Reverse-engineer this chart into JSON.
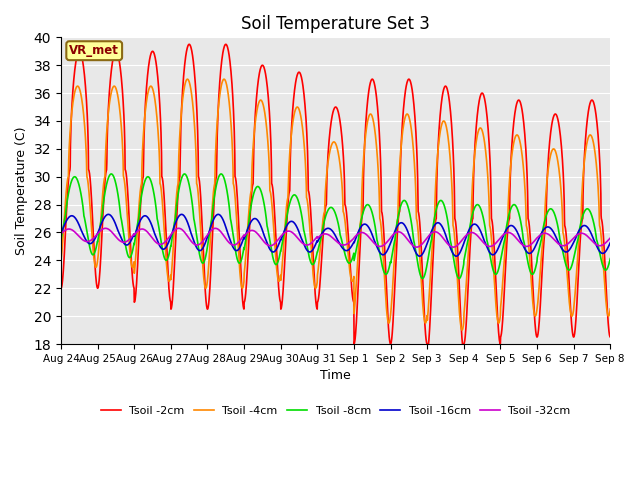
{
  "title": "Soil Temperature Set 3",
  "xlabel": "Time",
  "ylabel": "Soil Temperature (C)",
  "ylim": [
    18,
    40
  ],
  "background_color": "#e8e8e8",
  "annotation": "VR_met",
  "annotation_color": "#8B0000",
  "annotation_bg": "#ffff99",
  "annotation_border": "#8B6914",
  "legend_entries": [
    "Tsoil -2cm",
    "Tsoil -4cm",
    "Tsoil -8cm",
    "Tsoil -16cm",
    "Tsoil -32cm"
  ],
  "line_colors": [
    "#ff0000",
    "#ff8800",
    "#00dd00",
    "#0000cc",
    "#cc00cc"
  ],
  "line_widths": [
    1.2,
    1.2,
    1.2,
    1.2,
    1.2
  ],
  "xtick_labels": [
    "Aug 24",
    "Aug 25",
    "Aug 26",
    "Aug 27",
    "Aug 28",
    "Aug 29",
    "Aug 30",
    "Aug 31",
    "Sep 1",
    "Sep 2",
    "Sep 3",
    "Sep 4",
    "Sep 5",
    "Sep 6",
    "Sep 7",
    "Sep 8"
  ],
  "num_days": 15,
  "points_per_day": 144
}
